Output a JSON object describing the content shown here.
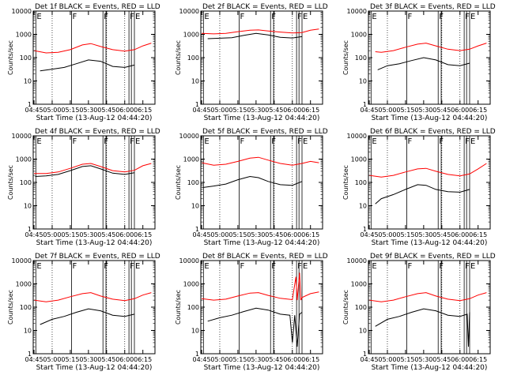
{
  "figure": {
    "ytick_labels": [
      "1",
      "10",
      "100",
      "1000",
      "10000"
    ],
    "xtick_labels": [
      "04:45",
      "05:00",
      "05:15",
      "05:30",
      "05:45",
      "06:00",
      "06:15"
    ],
    "series_colors": {
      "events": "#000000",
      "lld": "#ff0000"
    },
    "marker_color": "#000000",
    "grid_dotted": true
  },
  "chart_data": [
    {
      "type": "line",
      "title": "Det 1f BLACK = Events, RED = LLD",
      "xlabel": "Start Time (13-Aug-12 04:44:20)",
      "ylabel": "Counts/sec",
      "yscale": "log",
      "ylim": [
        1,
        10000
      ],
      "xlim": [
        "04:44:20",
        "06:25:00"
      ],
      "dotted_gridlines_x": [
        "05:00",
        "05:45",
        "06:00"
      ],
      "interval_markers": [
        {
          "time": "04:46:30",
          "label": "E"
        },
        {
          "time": "05:16:00",
          "label": "F"
        },
        {
          "time": "05:42:00",
          "label": "F"
        },
        {
          "time": "05:44:30",
          "label": ""
        },
        {
          "time": "06:03:30",
          "label": "F"
        },
        {
          "time": "06:05:30",
          "label": ""
        },
        {
          "time": "06:08:00",
          "label": "E"
        }
      ],
      "series": [
        {
          "name": "LLD",
          "color": "#ff0000",
          "x": [
            "04:45",
            "04:55",
            "05:05",
            "05:15",
            "05:25",
            "05:32",
            "05:40",
            "05:50",
            "06:00",
            "06:08",
            "06:15",
            "06:22"
          ],
          "values": [
            200,
            160,
            170,
            220,
            350,
            400,
            300,
            220,
            190,
            220,
            320,
            420
          ]
        },
        {
          "name": "Events",
          "color": "#000000",
          "x": [
            "04:50",
            "05:00",
            "05:10",
            "05:20",
            "05:30",
            "05:40",
            "05:50",
            "06:00",
            "06:08"
          ],
          "values": [
            27,
            32,
            38,
            55,
            80,
            70,
            42,
            38,
            48
          ]
        }
      ]
    },
    {
      "type": "line",
      "title": "Det 2f BLACK = Events, RED = LLD",
      "xlabel": "Start Time (13-Aug-12 04:44:20)",
      "ylabel": "Counts/sec",
      "yscale": "log",
      "ylim": [
        1,
        10000
      ],
      "xlim": [
        "04:44:20",
        "06:25:00"
      ],
      "dotted_gridlines_x": [
        "05:00",
        "05:45",
        "06:00"
      ],
      "interval_markers": [
        {
          "time": "04:46:30",
          "label": "E"
        },
        {
          "time": "05:16:00",
          "label": "F"
        },
        {
          "time": "05:42:00",
          "label": "F"
        },
        {
          "time": "05:44:30",
          "label": ""
        },
        {
          "time": "06:03:30",
          "label": "F"
        },
        {
          "time": "06:05:30",
          "label": ""
        },
        {
          "time": "06:08:00",
          "label": "E"
        }
      ],
      "series": [
        {
          "name": "LLD",
          "color": "#ff0000",
          "x": [
            "04:45",
            "04:55",
            "05:05",
            "05:15",
            "05:25",
            "05:32",
            "05:40",
            "05:50",
            "06:00",
            "06:08",
            "06:15",
            "06:22"
          ],
          "values": [
            1100,
            1050,
            1100,
            1300,
            1500,
            1550,
            1400,
            1250,
            1150,
            1200,
            1500,
            1700
          ]
        },
        {
          "name": "Events",
          "color": "#000000",
          "x": [
            "04:50",
            "05:00",
            "05:10",
            "05:20",
            "05:30",
            "05:40",
            "05:50",
            "06:00",
            "06:08"
          ],
          "values": [
            650,
            680,
            720,
            900,
            1100,
            950,
            750,
            700,
            800
          ]
        }
      ]
    },
    {
      "type": "line",
      "title": "Det 3f BLACK = Events, RED = LLD",
      "xlabel": "Start Time (13-Aug-12 04:44:20)",
      "ylabel": "Counts/sec",
      "yscale": "log",
      "ylim": [
        1,
        10000
      ],
      "xlim": [
        "04:44:20",
        "06:25:00"
      ],
      "dotted_gridlines_x": [
        "05:00",
        "05:45",
        "06:00"
      ],
      "interval_markers": [
        {
          "time": "04:46:30",
          "label": "E"
        },
        {
          "time": "05:16:00",
          "label": "F"
        },
        {
          "time": "05:42:00",
          "label": "F"
        },
        {
          "time": "05:44:30",
          "label": ""
        },
        {
          "time": "06:03:30",
          "label": "F"
        },
        {
          "time": "06:05:30",
          "label": ""
        },
        {
          "time": "06:08:00",
          "label": "E"
        }
      ],
      "series": [
        {
          "name": "LLD",
          "color": "#ff0000",
          "x": [
            "04:50",
            "04:55",
            "05:05",
            "05:15",
            "05:25",
            "05:32",
            "05:40",
            "05:50",
            "06:00",
            "06:08",
            "06:15",
            "06:22"
          ],
          "values": [
            180,
            170,
            200,
            280,
            380,
            420,
            320,
            230,
            200,
            230,
            320,
            420
          ]
        },
        {
          "name": "Events",
          "color": "#000000",
          "x": [
            "04:52",
            "05:00",
            "05:10",
            "05:20",
            "05:30",
            "05:40",
            "05:50",
            "06:00",
            "06:08"
          ],
          "values": [
            30,
            45,
            55,
            75,
            100,
            80,
            50,
            45,
            58
          ]
        }
      ]
    },
    {
      "type": "line",
      "title": "Det 4f BLACK = Events, RED = LLD",
      "xlabel": "Start Time (13-Aug-12 04:44:20)",
      "ylabel": "Counts/sec",
      "yscale": "log",
      "ylim": [
        1,
        10000
      ],
      "xlim": [
        "04:44:20",
        "06:25:00"
      ],
      "dotted_gridlines_x": [
        "05:00",
        "05:45",
        "06:00"
      ],
      "interval_markers": [
        {
          "time": "04:46:30",
          "label": "E"
        },
        {
          "time": "05:16:00",
          "label": "F"
        },
        {
          "time": "05:42:00",
          "label": "F"
        },
        {
          "time": "05:44:30",
          "label": ""
        },
        {
          "time": "06:03:30",
          "label": "F"
        },
        {
          "time": "06:05:30",
          "label": ""
        },
        {
          "time": "06:08:00",
          "label": "E"
        }
      ],
      "series": [
        {
          "name": "LLD",
          "color": "#ff0000",
          "x": [
            "04:45",
            "04:55",
            "05:05",
            "05:15",
            "05:25",
            "05:32",
            "05:40",
            "05:50",
            "06:00",
            "06:08",
            "06:15",
            "06:22"
          ],
          "values": [
            240,
            240,
            280,
            400,
            600,
            650,
            480,
            320,
            280,
            330,
            520,
            650
          ]
        },
        {
          "name": "Events",
          "color": "#000000",
          "x": [
            "04:46",
            "04:55",
            "05:05",
            "05:15",
            "05:25",
            "05:32",
            "05:40",
            "05:50",
            "06:00",
            "06:08"
          ],
          "values": [
            180,
            190,
            220,
            320,
            480,
            520,
            380,
            250,
            220,
            260
          ]
        }
      ]
    },
    {
      "type": "line",
      "title": "Det 5f BLACK = Events, RED = LLD",
      "xlabel": "Start Time (13-Aug-12 04:44:20)",
      "ylabel": "Counts/sec",
      "yscale": "log",
      "ylim": [
        1,
        10000
      ],
      "xlim": [
        "04:44:20",
        "06:25:00"
      ],
      "dotted_gridlines_x": [
        "05:00",
        "05:45",
        "06:00"
      ],
      "interval_markers": [
        {
          "time": "04:46:30",
          "label": "E"
        },
        {
          "time": "05:16:00",
          "label": "F"
        },
        {
          "time": "05:42:00",
          "label": "F"
        },
        {
          "time": "05:44:30",
          "label": ""
        },
        {
          "time": "06:03:30",
          "label": "F"
        },
        {
          "time": "06:05:30",
          "label": ""
        },
        {
          "time": "06:08:00",
          "label": "E"
        }
      ],
      "series": [
        {
          "name": "LLD",
          "color": "#ff0000",
          "x": [
            "04:45",
            "04:55",
            "05:05",
            "05:15",
            "05:25",
            "05:32",
            "05:40",
            "05:50",
            "06:00",
            "06:08",
            "06:15",
            "06:22"
          ],
          "values": [
            700,
            550,
            600,
            800,
            1100,
            1200,
            900,
            650,
            550,
            650,
            800,
            700
          ]
        },
        {
          "name": "Events",
          "color": "#000000",
          "x": [
            "04:46",
            "04:55",
            "05:05",
            "05:15",
            "05:25",
            "05:32",
            "05:40",
            "05:50",
            "06:00",
            "06:08"
          ],
          "values": [
            60,
            70,
            85,
            130,
            180,
            160,
            110,
            80,
            75,
            110
          ]
        }
      ]
    },
    {
      "type": "line",
      "title": "Det 6f BLACK = Events, RED = LLD",
      "xlabel": "Start Time (13-Aug-12 04:44:20)",
      "ylabel": "Counts/sec",
      "yscale": "log",
      "ylim": [
        1,
        10000
      ],
      "xlim": [
        "04:44:20",
        "06:25:00"
      ],
      "dotted_gridlines_x": [
        "05:00",
        "05:45",
        "06:00"
      ],
      "interval_markers": [
        {
          "time": "04:46:30",
          "label": "E"
        },
        {
          "time": "05:16:00",
          "label": "F"
        },
        {
          "time": "05:42:00",
          "label": "F"
        },
        {
          "time": "05:44:30",
          "label": ""
        },
        {
          "time": "06:03:30",
          "label": "F"
        },
        {
          "time": "06:05:30",
          "label": ""
        },
        {
          "time": "06:08:00",
          "label": "E"
        }
      ],
      "series": [
        {
          "name": "LLD",
          "color": "#ff0000",
          "x": [
            "04:45",
            "04:55",
            "05:05",
            "05:15",
            "05:25",
            "05:32",
            "05:40",
            "05:50",
            "06:00",
            "06:08",
            "06:15",
            "06:22"
          ],
          "values": [
            200,
            170,
            200,
            280,
            380,
            400,
            300,
            220,
            190,
            230,
            380,
            650
          ]
        },
        {
          "name": "Events",
          "color": "#000000",
          "x": [
            "04:50",
            "04:55",
            "05:05",
            "05:15",
            "05:25",
            "05:32",
            "05:40",
            "05:50",
            "06:00",
            "06:08"
          ],
          "values": [
            12,
            20,
            30,
            50,
            80,
            75,
            50,
            40,
            38,
            50
          ]
        }
      ]
    },
    {
      "type": "line",
      "title": "Det 7f BLACK = Events, RED = LLD",
      "xlabel": "Start Time (13-Aug-12 04:44:20)",
      "ylabel": "Counts/sec",
      "yscale": "log",
      "ylim": [
        1,
        10000
      ],
      "xlim": [
        "04:44:20",
        "06:25:00"
      ],
      "dotted_gridlines_x": [
        "05:00",
        "05:45",
        "06:00"
      ],
      "interval_markers": [
        {
          "time": "04:46:30",
          "label": "E"
        },
        {
          "time": "05:16:00",
          "label": "F"
        },
        {
          "time": "05:42:00",
          "label": "F"
        },
        {
          "time": "05:44:30",
          "label": ""
        },
        {
          "time": "06:03:30",
          "label": "F"
        },
        {
          "time": "06:05:30",
          "label": ""
        },
        {
          "time": "06:08:00",
          "label": "E"
        }
      ],
      "series": [
        {
          "name": "LLD",
          "color": "#ff0000",
          "x": [
            "04:45",
            "04:55",
            "05:05",
            "05:15",
            "05:25",
            "05:32",
            "05:40",
            "05:50",
            "06:00",
            "06:08",
            "06:15",
            "06:22"
          ],
          "values": [
            200,
            170,
            200,
            280,
            380,
            420,
            300,
            220,
            190,
            230,
            330,
            420
          ]
        },
        {
          "name": "Events",
          "color": "#000000",
          "x": [
            "04:50",
            "05:00",
            "05:10",
            "05:20",
            "05:30",
            "05:40",
            "05:50",
            "06:00",
            "06:08"
          ],
          "values": [
            18,
            30,
            40,
            60,
            85,
            70,
            45,
            40,
            50
          ]
        }
      ]
    },
    {
      "type": "line",
      "title": "Det 8f BLACK = Events, RED = LLD",
      "xlabel": "Start Time (13-Aug-12 04:44:20)",
      "ylabel": "Counts/sec",
      "yscale": "log",
      "ylim": [
        1,
        10000
      ],
      "xlim": [
        "04:44:20",
        "06:25:00"
      ],
      "dotted_gridlines_x": [
        "05:00",
        "05:45",
        "06:00"
      ],
      "interval_markers": [
        {
          "time": "04:46:30",
          "label": "E"
        },
        {
          "time": "05:16:00",
          "label": "F"
        },
        {
          "time": "05:42:00",
          "label": "F"
        },
        {
          "time": "05:44:30",
          "label": ""
        },
        {
          "time": "06:03:30",
          "label": "F"
        },
        {
          "time": "06:05:30",
          "label": ""
        },
        {
          "time": "06:08:00",
          "label": "E"
        }
      ],
      "series": [
        {
          "name": "LLD",
          "color": "#ff0000",
          "x": [
            "04:45",
            "04:55",
            "05:05",
            "05:15",
            "05:25",
            "05:32",
            "05:40",
            "05:50",
            "06:00",
            "06:03",
            "06:04",
            "06:06",
            "06:07",
            "06:08",
            "06:15",
            "06:22"
          ],
          "values": [
            230,
            200,
            220,
            300,
            400,
            420,
            320,
            240,
            210,
            2000,
            200,
            3000,
            200,
            260,
            380,
            450
          ]
        },
        {
          "name": "Events",
          "color": "#000000",
          "x": [
            "04:50",
            "05:00",
            "05:10",
            "05:20",
            "05:30",
            "05:40",
            "05:50",
            "05:58",
            "06:00",
            "06:02",
            "06:04",
            "06:06",
            "06:08"
          ],
          "values": [
            25,
            35,
            45,
            65,
            90,
            75,
            50,
            45,
            3,
            45,
            2,
            50,
            60
          ]
        }
      ]
    },
    {
      "type": "line",
      "title": "Det 9f BLACK = Events, RED = LLD",
      "xlabel": "Start Time (13-Aug-12 04:44:20)",
      "ylabel": "Counts/sec",
      "yscale": "log",
      "ylim": [
        1,
        10000
      ],
      "xlim": [
        "04:44:20",
        "06:25:00"
      ],
      "dotted_gridlines_x": [
        "05:00",
        "05:45",
        "06:00"
      ],
      "interval_markers": [
        {
          "time": "04:46:30",
          "label": "E"
        },
        {
          "time": "05:16:00",
          "label": "F"
        },
        {
          "time": "05:42:00",
          "label": "F"
        },
        {
          "time": "05:44:30",
          "label": ""
        },
        {
          "time": "06:03:30",
          "label": "F"
        },
        {
          "time": "06:05:30",
          "label": ""
        },
        {
          "time": "06:08:00",
          "label": "E"
        }
      ],
      "series": [
        {
          "name": "LLD",
          "color": "#ff0000",
          "x": [
            "04:45",
            "04:55",
            "05:05",
            "05:15",
            "05:25",
            "05:32",
            "05:40",
            "05:50",
            "06:00",
            "06:08",
            "06:15",
            "06:22"
          ],
          "values": [
            200,
            170,
            200,
            280,
            380,
            420,
            300,
            220,
            190,
            230,
            330,
            420
          ]
        },
        {
          "name": "Events",
          "color": "#000000",
          "x": [
            "04:50",
            "05:00",
            "05:10",
            "05:20",
            "05:30",
            "05:40",
            "05:50",
            "06:00",
            "06:06",
            "06:07",
            "06:08"
          ],
          "values": [
            15,
            30,
            40,
            60,
            85,
            70,
            45,
            40,
            50,
            2,
            60
          ]
        }
      ]
    }
  ]
}
